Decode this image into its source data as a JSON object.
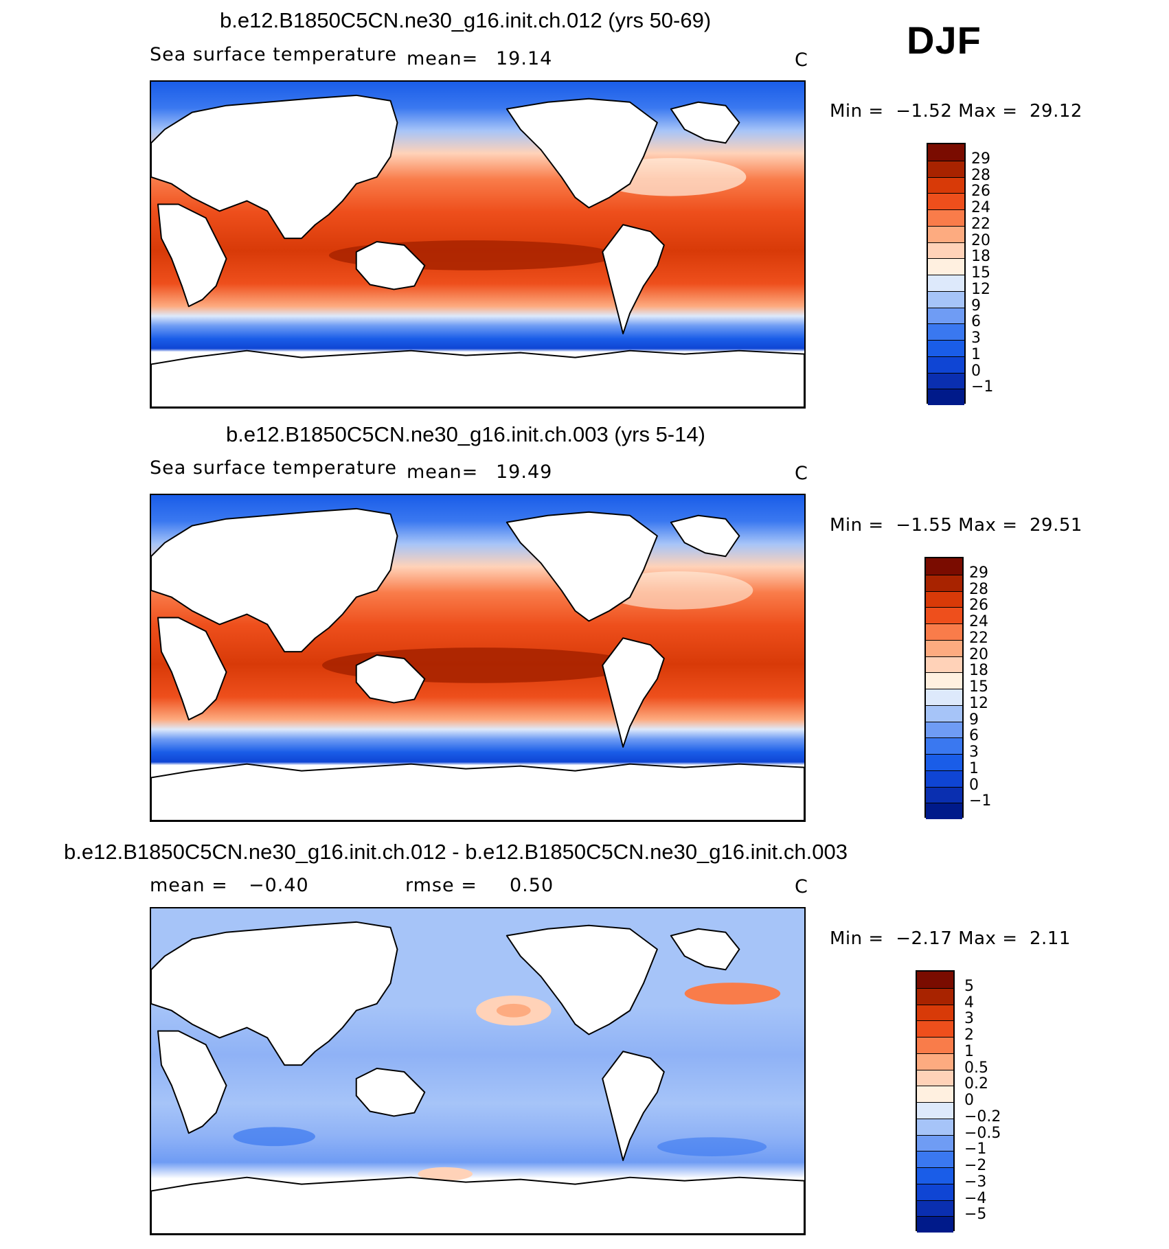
{
  "season": "DJF",
  "panels": [
    {
      "title": "b.e12.B1850C5CN.ne30_g16.init.ch.012 (yrs 50-69)",
      "variable": "Sea surface temperature",
      "stat_label": "mean=",
      "stat_value": "19.14",
      "units": "C",
      "min_label": "Min =",
      "min_value": "−1.52",
      "max_label": "Max =",
      "max_value": "29.12",
      "colorbar": {
        "colors": [
          "#001a8a",
          "#0a2fb0",
          "#0f45d4",
          "#1a5de8",
          "#3a78f0",
          "#6f9cf4",
          "#a6c4f8",
          "#dde9fb",
          "#fff0e0",
          "#ffd2b8",
          "#fdab80",
          "#f97c4a",
          "#ee4f1c",
          "#d83a08",
          "#a82300",
          "#7a0c00"
        ],
        "ticks": [
          "−1",
          "0",
          "1",
          "3",
          "6",
          "9",
          "12",
          "15",
          "18",
          "20",
          "22",
          "24",
          "26",
          "28",
          "29"
        ]
      },
      "stats_chart": {
        "type": "heatmap",
        "title": "b.e12.B1850C5CN.ne30_g16.init.ch.012 (yrs 50-69)",
        "mean": 19.14,
        "min": -1.52,
        "max": 29.12,
        "units": "C",
        "levels": [
          -1,
          0,
          1,
          3,
          6,
          9,
          12,
          15,
          18,
          20,
          22,
          24,
          26,
          28,
          29
        ]
      }
    },
    {
      "title": "b.e12.B1850C5CN.ne30_g16.init.ch.003 (yrs 5-14)",
      "variable": "Sea surface temperature",
      "stat_label": "mean=",
      "stat_value": "19.49",
      "units": "C",
      "min_label": "Min =",
      "min_value": "−1.55",
      "max_label": "Max =",
      "max_value": "29.51",
      "colorbar": {
        "colors": [
          "#001a8a",
          "#0a2fb0",
          "#0f45d4",
          "#1a5de8",
          "#3a78f0",
          "#6f9cf4",
          "#a6c4f8",
          "#dde9fb",
          "#fff0e0",
          "#ffd2b8",
          "#fdab80",
          "#f97c4a",
          "#ee4f1c",
          "#d83a08",
          "#a82300",
          "#7a0c00"
        ],
        "ticks": [
          "−1",
          "0",
          "1",
          "3",
          "6",
          "9",
          "12",
          "15",
          "18",
          "20",
          "22",
          "24",
          "26",
          "28",
          "29"
        ]
      }
    },
    {
      "title": "b.e12.B1850C5CN.ne30_g16.init.ch.012 - b.e12.B1850C5CN.ne30_g16.init.ch.003",
      "variable": "mean =",
      "stat_label": "rmse =",
      "mean_value": "−0.40",
      "stat_value": "0.50",
      "units": "C",
      "min_label": "Min =",
      "min_value": "−2.17",
      "max_label": "Max =",
      "max_value": "2.11",
      "colorbar": {
        "colors": [
          "#001a8a",
          "#0a2fb0",
          "#0f45d4",
          "#1a5de8",
          "#3a78f0",
          "#6f9cf4",
          "#a6c4f8",
          "#dde9fb",
          "#fff0e0",
          "#ffd2b8",
          "#fdab80",
          "#f97c4a",
          "#ee4f1c",
          "#d83a08",
          "#a82300",
          "#7a0c00"
        ],
        "ticks": [
          "−5",
          "−4",
          "−3",
          "−2",
          "−1",
          "−0.5",
          "−0.2",
          "0",
          "0.2",
          "0.5",
          "1",
          "2",
          "3",
          "4",
          "5"
        ]
      }
    }
  ],
  "chart_data": [
    {
      "type": "heatmap",
      "title": "b.e12.B1850C5CN.ne30_g16.init.ch.012 (yrs 50-69)",
      "mean": 19.14,
      "min": -1.52,
      "max": 29.12,
      "units": "C",
      "levels": [
        -1,
        0,
        1,
        3,
        6,
        9,
        12,
        15,
        18,
        20,
        22,
        24,
        26,
        28,
        29
      ]
    },
    {
      "type": "heatmap",
      "title": "b.e12.B1850C5CN.ne30_g16.init.ch.003 (yrs 5-14)",
      "mean": 19.49,
      "min": -1.55,
      "max": 29.51,
      "units": "C",
      "levels": [
        -1,
        0,
        1,
        3,
        6,
        9,
        12,
        15,
        18,
        20,
        22,
        24,
        26,
        28,
        29
      ]
    },
    {
      "type": "heatmap",
      "title": "b.e12.B1850C5CN.ne30_g16.init.ch.012 - b.e12.B1850C5CN.ne30_g16.init.ch.003",
      "mean": -0.4,
      "rmse": 0.5,
      "min": -2.17,
      "max": 2.11,
      "units": "C",
      "levels": [
        -5,
        -4,
        -3,
        -2,
        -1,
        -0.5,
        -0.2,
        0,
        0.2,
        0.5,
        1,
        2,
        3,
        4,
        5
      ]
    }
  ]
}
